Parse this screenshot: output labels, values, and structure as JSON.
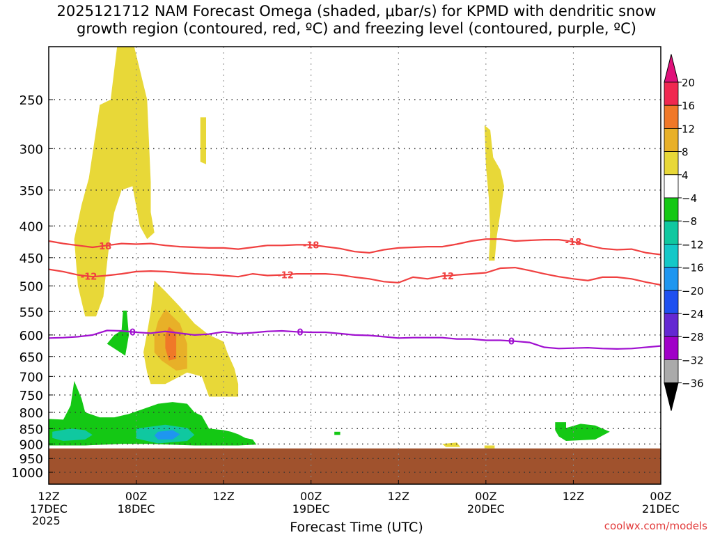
{
  "title": "2025121712 NAM Forecast Omega (shaded, μbar/s) for KPMD with dendritic snow\ngrowth region (contoured, red, ºC) and freezing level (contoured, purple, ºC)",
  "credit": "coolwx.com/models",
  "chart_data": {
    "type": "time-height cross section",
    "xlabel": "Forecast Time (UTC)",
    "year_label": "2025",
    "x_ticks": [
      {
        "hours": 0,
        "line1": "12Z",
        "line2": "17DEC"
      },
      {
        "hours": 12,
        "line1": "00Z",
        "line2": "18DEC"
      },
      {
        "hours": 24,
        "line1": "12Z",
        "line2": ""
      },
      {
        "hours": 36,
        "line1": "00Z",
        "line2": "19DEC"
      },
      {
        "hours": 48,
        "line1": "12Z",
        "line2": ""
      },
      {
        "hours": 60,
        "line1": "00Z",
        "line2": "20DEC"
      },
      {
        "hours": 72,
        "line1": "12Z",
        "line2": ""
      },
      {
        "hours": 84,
        "line1": "00Z",
        "line2": "21DEC"
      }
    ],
    "xlim": [
      0,
      84
    ],
    "y_ticks": [
      250,
      300,
      350,
      400,
      450,
      500,
      550,
      600,
      650,
      700,
      750,
      800,
      850,
      900,
      950,
      1000
    ],
    "ylim": [
      1000,
      200
    ],
    "y_scale": "log-pressure",
    "grid": true,
    "colorbar": {
      "labels": [
        "20",
        "16",
        "12",
        "8",
        "4",
        "−4",
        "−8",
        "−12",
        "−16",
        "−20",
        "−24",
        "−28",
        "−32",
        "−36"
      ],
      "colors": [
        "#f02850",
        "#f07828",
        "#e8b028",
        "#e8d838",
        "#ffffff",
        "#14c814",
        "#10c8a0",
        "#14c8c8",
        "#1e96f0",
        "#1e50f0",
        "#6428d2",
        "#a000c8",
        "#aaaaaa"
      ],
      "top_arrow": "#e0107a",
      "bottom_arrow": "#000000"
    },
    "contours": [
      {
        "label": "-18",
        "color": "#f04040",
        "label_positions": [
          7.5,
          36,
          72
        ],
        "points": [
          [
            0,
            423
          ],
          [
            2,
            427
          ],
          [
            4,
            430
          ],
          [
            6,
            433
          ],
          [
            8,
            430
          ],
          [
            10,
            427
          ],
          [
            12,
            428
          ],
          [
            14,
            427
          ],
          [
            16,
            430
          ],
          [
            18,
            432
          ],
          [
            20,
            433
          ],
          [
            22,
            434
          ],
          [
            24,
            434
          ],
          [
            26,
            436
          ],
          [
            28,
            433
          ],
          [
            30,
            430
          ],
          [
            32,
            430
          ],
          [
            34,
            429
          ],
          [
            36,
            429
          ],
          [
            38,
            432
          ],
          [
            40,
            435
          ],
          [
            42,
            440
          ],
          [
            44,
            442
          ],
          [
            46,
            437
          ],
          [
            48,
            434
          ],
          [
            50,
            433
          ],
          [
            52,
            432
          ],
          [
            54,
            432
          ],
          [
            56,
            428
          ],
          [
            58,
            423
          ],
          [
            60,
            420
          ],
          [
            62,
            420
          ],
          [
            64,
            423
          ],
          [
            66,
            422
          ],
          [
            68,
            421
          ],
          [
            70,
            421
          ],
          [
            72,
            424
          ],
          [
            74,
            430
          ],
          [
            76,
            435
          ],
          [
            78,
            437
          ],
          [
            80,
            436
          ],
          [
            82,
            442
          ],
          [
            84,
            445
          ]
        ]
      },
      {
        "label": "-12",
        "color": "#f04040",
        "label_positions": [
          5.5,
          32.5,
          54.5
        ],
        "points": [
          [
            0,
            470
          ],
          [
            2,
            474
          ],
          [
            4,
            480
          ],
          [
            6,
            483
          ],
          [
            8,
            481
          ],
          [
            10,
            478
          ],
          [
            12,
            474
          ],
          [
            14,
            473
          ],
          [
            16,
            474
          ],
          [
            18,
            476
          ],
          [
            20,
            478
          ],
          [
            22,
            479
          ],
          [
            24,
            481
          ],
          [
            26,
            483
          ],
          [
            28,
            478
          ],
          [
            30,
            481
          ],
          [
            32,
            480
          ],
          [
            34,
            478
          ],
          [
            36,
            478
          ],
          [
            38,
            478
          ],
          [
            40,
            480
          ],
          [
            42,
            484
          ],
          [
            44,
            487
          ],
          [
            46,
            492
          ],
          [
            48,
            494
          ],
          [
            50,
            484
          ],
          [
            52,
            487
          ],
          [
            54,
            482
          ],
          [
            56,
            480
          ],
          [
            58,
            478
          ],
          [
            60,
            476
          ],
          [
            62,
            468
          ],
          [
            64,
            467
          ],
          [
            66,
            472
          ],
          [
            68,
            478
          ],
          [
            70,
            483
          ],
          [
            72,
            487
          ],
          [
            74,
            490
          ],
          [
            76,
            484
          ],
          [
            78,
            484
          ],
          [
            80,
            487
          ],
          [
            82,
            493
          ],
          [
            84,
            498
          ]
        ]
      },
      {
        "label": "0",
        "color": "#a010d0",
        "label_positions": [
          11.5,
          34.5,
          63.5
        ],
        "points": [
          [
            0,
            607
          ],
          [
            2,
            606
          ],
          [
            4,
            604
          ],
          [
            6,
            600
          ],
          [
            8,
            590
          ],
          [
            10,
            591
          ],
          [
            12,
            594
          ],
          [
            14,
            596
          ],
          [
            16,
            592
          ],
          [
            18,
            596
          ],
          [
            20,
            600
          ],
          [
            22,
            598
          ],
          [
            24,
            593
          ],
          [
            26,
            597
          ],
          [
            28,
            595
          ],
          [
            30,
            592
          ],
          [
            32,
            591
          ],
          [
            34,
            593
          ],
          [
            36,
            594
          ],
          [
            38,
            594
          ],
          [
            40,
            597
          ],
          [
            42,
            600
          ],
          [
            44,
            601
          ],
          [
            46,
            604
          ],
          [
            48,
            607
          ],
          [
            50,
            606
          ],
          [
            52,
            606
          ],
          [
            54,
            606
          ],
          [
            56,
            609
          ],
          [
            58,
            609
          ],
          [
            60,
            612
          ],
          [
            62,
            612
          ],
          [
            64,
            614
          ],
          [
            66,
            617
          ],
          [
            68,
            628
          ],
          [
            70,
            631
          ],
          [
            72,
            630
          ],
          [
            74,
            629
          ],
          [
            76,
            631
          ],
          [
            78,
            632
          ],
          [
            80,
            631
          ],
          [
            82,
            628
          ],
          [
            84,
            625
          ]
        ]
      }
    ],
    "terrain_top_hPa": 915,
    "terrain_color": "#a0522d"
  }
}
